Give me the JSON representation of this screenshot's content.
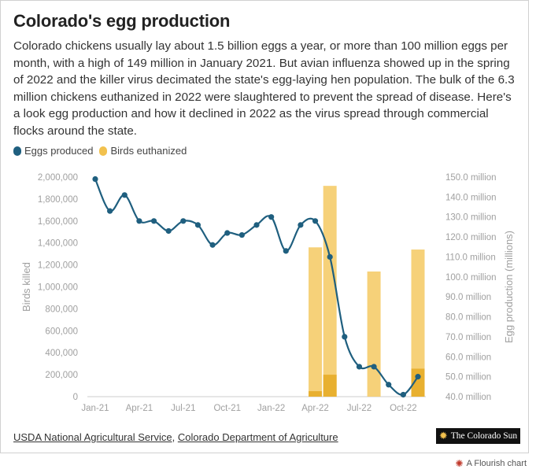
{
  "title": "Colorado's egg production",
  "subtitle": "Colorado chickens usually lay about 1.5 billion eggs a year, or more than 100 million eggs per month, with a high of 149 million in January 2021. But avian influenza showed up in the spring of 2022 and the killer virus decimated the state's egg-laying hen population. The bulk of the 6.3 million chickens euthanized in 2022 were slaughtered to prevent the spread of disease. Here's a look egg production and how it declined in 2022 as the virus spread through commercial flocks around the state.",
  "colors": {
    "eggs": "#1f5f7f",
    "birds": "#f2c14e",
    "birds_fill": "#f5cc6a"
  },
  "legend": {
    "eggs_label": "Eggs produced",
    "birds_label": "Birds euthanized"
  },
  "source": {
    "link1": "USDA National Agricultural Service",
    "separator": ", ",
    "link2": "Colorado Department of Agriculture"
  },
  "logo_text": "The Colorado Sun",
  "flourish_text": "A Flourish chart",
  "chart_data": {
    "type": "bar+line",
    "x": [
      "2021-01",
      "2021-02",
      "2021-03",
      "2021-04",
      "2021-05",
      "2021-06",
      "2021-07",
      "2021-08",
      "2021-09",
      "2021-10",
      "2021-11",
      "2021-12",
      "2022-01",
      "2022-02",
      "2022-03",
      "2022-04",
      "2022-05",
      "2022-06",
      "2022-07",
      "2022-08",
      "2022-09",
      "2022-10",
      "2022-11"
    ],
    "x_tick_labels": [
      "Jan-21",
      "Apr-21",
      "Jul-21",
      "Oct-21",
      "Jan-22",
      "Apr-22",
      "Jul-22",
      "Oct-22"
    ],
    "x_tick_dates": [
      "2021-01",
      "2021-04",
      "2021-07",
      "2021-10",
      "2022-01",
      "2022-04",
      "2022-07",
      "2022-10"
    ],
    "series": [
      {
        "name": "Birds euthanized",
        "axis": "left",
        "kind": "bar",
        "values": [
          0,
          0,
          0,
          0,
          0,
          0,
          0,
          0,
          0,
          0,
          0,
          0,
          0,
          0,
          0,
          1360000,
          1920000,
          0,
          0,
          1140000,
          0,
          0,
          1340000
        ],
        "overlay_values": [
          0,
          0,
          0,
          0,
          0,
          0,
          0,
          0,
          0,
          0,
          0,
          0,
          0,
          0,
          0,
          50000,
          200000,
          0,
          0,
          0,
          0,
          0,
          255000
        ]
      },
      {
        "name": "Eggs produced",
        "axis": "right",
        "kind": "line",
        "values": [
          149,
          133,
          141,
          128,
          128,
          123,
          128,
          126,
          116,
          122,
          121,
          126,
          130,
          113,
          126,
          128,
          110,
          70,
          55,
          55,
          46,
          41,
          50
        ]
      }
    ],
    "y_left": {
      "label": "Birds killed",
      "range": [
        0,
        2000000
      ],
      "ticks": [
        "0",
        "200,000",
        "400,000",
        "600,000",
        "800,000",
        "1,000,000",
        "1,200,000",
        "1,400,000",
        "1,600,000",
        "1,800,000",
        "2,000,000"
      ]
    },
    "y_right": {
      "label": "Egg production (millions)",
      "range": [
        40,
        150
      ],
      "ticks": [
        "40.0 million",
        "50.0 million",
        "60.0 million",
        "70.0 million",
        "80.0 million",
        "90.0 million",
        "100.0 million",
        "110.0 million",
        "120.0 million",
        "130.0 million",
        "140.0 million",
        "150.0 million"
      ]
    },
    "grid": false,
    "legend_position": "top-left"
  }
}
